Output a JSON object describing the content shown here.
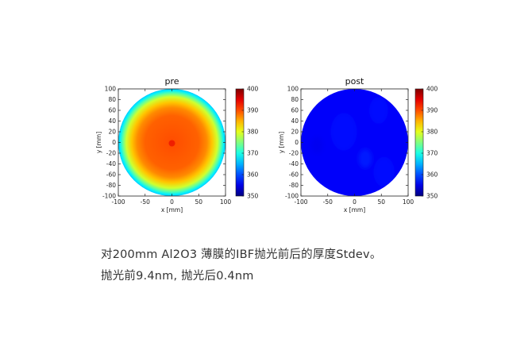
{
  "chart_data": [
    {
      "type": "heatmap",
      "title": "pre",
      "xlabel": "x [mm]",
      "ylabel": "y [mm]",
      "xlim": [
        -100,
        100
      ],
      "ylim": [
        -100,
        100
      ],
      "x_ticks": [
        -100,
        -50,
        0,
        50,
        100
      ],
      "y_ticks": [
        100,
        80,
        60,
        40,
        20,
        0,
        -20,
        -40,
        -60,
        -80,
        -100
      ],
      "colorbar": {
        "min": 350,
        "max": 400,
        "ticks": [
          400,
          390,
          380,
          370,
          360,
          350
        ]
      },
      "wafer_radius_mm": 100,
      "radial_profile": [
        {
          "r_mm": 0,
          "value": 390
        },
        {
          "r_mm": 50,
          "value": 389
        },
        {
          "r_mm": 65,
          "value": 387
        },
        {
          "r_mm": 75,
          "value": 384
        },
        {
          "r_mm": 85,
          "value": 379
        },
        {
          "r_mm": 92,
          "value": 373
        },
        {
          "r_mm": 97,
          "value": 368
        },
        {
          "r_mm": 100,
          "value": 366
        }
      ]
    },
    {
      "type": "heatmap",
      "title": "post",
      "xlabel": "x [mm]",
      "ylabel": "y [mm]",
      "xlim": [
        -100,
        100
      ],
      "ylim": [
        -100,
        100
      ],
      "x_ticks": [
        -100,
        -50,
        0,
        50,
        100
      ],
      "y_ticks": [
        100,
        80,
        60,
        40,
        20,
        0,
        -20,
        -40,
        -60,
        -80,
        -100
      ],
      "colorbar": {
        "min": 350,
        "max": 400,
        "ticks": [
          400,
          390,
          380,
          370,
          360,
          350
        ]
      },
      "wafer_radius_mm": 100,
      "base_value": 356,
      "patches": [
        {
          "x_mm": -20,
          "y_mm": 20,
          "r_mm": 35,
          "value": 357
        },
        {
          "x_mm": 45,
          "y_mm": 60,
          "r_mm": 25,
          "value": 357
        },
        {
          "x_mm": 55,
          "y_mm": -55,
          "r_mm": 28,
          "value": 357
        },
        {
          "x_mm": -70,
          "y_mm": -5,
          "r_mm": 15,
          "value": 355.5
        },
        {
          "x_mm": 20,
          "y_mm": -30,
          "r_mm": 18,
          "value": 357.5
        }
      ]
    }
  ],
  "caption": {
    "line1": "对200mm Al2O3 薄膜的IBF抛光前后的厚度Stdev。",
    "line2": "抛光前9.4nm, 抛光后0.4nm"
  }
}
